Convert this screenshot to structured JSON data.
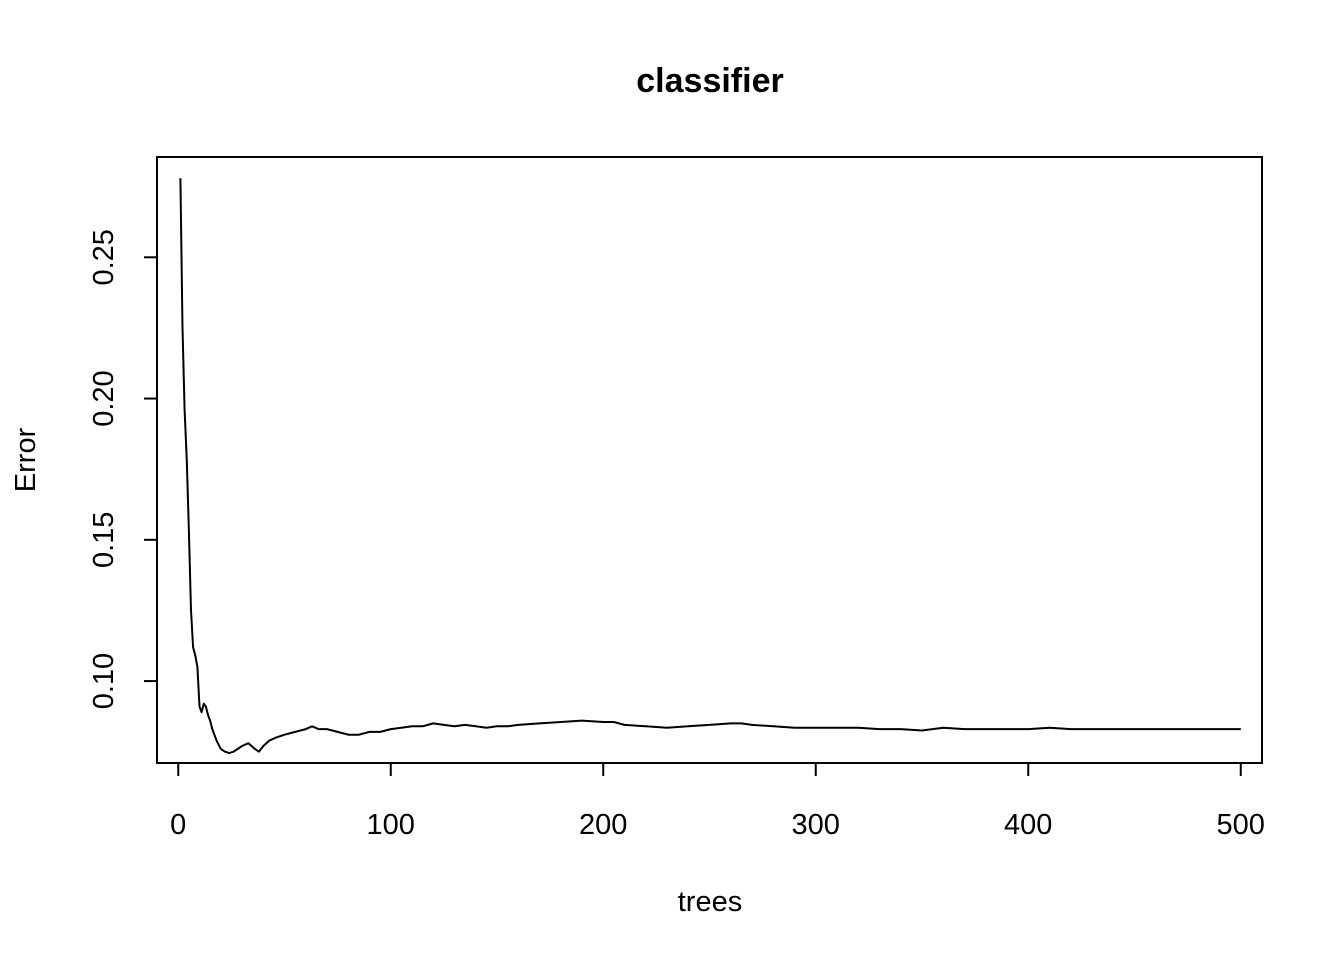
{
  "chart_data": {
    "type": "line",
    "title": "classifier",
    "xlabel": "trees",
    "ylabel": "Error",
    "xlim": [
      -10,
      510
    ],
    "ylim": [
      0.071,
      0.2855
    ],
    "x_ticks": [
      0,
      100,
      200,
      300,
      400,
      500
    ],
    "y_ticks": [
      0.1,
      0.15,
      0.2,
      0.25
    ],
    "x_tick_labels": [
      "0",
      "100",
      "200",
      "300",
      "400",
      "500"
    ],
    "y_tick_labels": [
      "0.10",
      "0.15",
      "0.20",
      "0.25"
    ],
    "grid": false,
    "legend": "none",
    "line_color": "#000000",
    "series": [
      {
        "x": [
          1,
          2,
          3,
          4,
          5,
          6,
          7,
          8,
          9,
          10,
          11,
          12,
          13,
          14,
          15,
          16,
          18,
          20,
          22,
          24,
          26,
          28,
          30,
          33,
          36,
          38,
          40,
          43,
          46,
          50,
          55,
          60,
          63,
          66,
          70,
          75,
          80,
          85,
          90,
          95,
          100,
          105,
          110,
          115,
          120,
          125,
          130,
          135,
          140,
          145,
          150,
          155,
          160,
          170,
          180,
          190,
          200,
          205,
          210,
          220,
          230,
          240,
          250,
          260,
          265,
          270,
          280,
          290,
          300,
          310,
          320,
          330,
          340,
          350,
          360,
          370,
          380,
          390,
          400,
          410,
          420,
          430,
          440,
          450,
          460,
          470,
          480,
          490,
          500
        ],
        "y": [
          0.278,
          0.225,
          0.196,
          0.178,
          0.153,
          0.125,
          0.112,
          0.109,
          0.105,
          0.091,
          0.089,
          0.092,
          0.091,
          0.088,
          0.086,
          0.083,
          0.079,
          0.076,
          0.075,
          0.0745,
          0.075,
          0.076,
          0.077,
          0.078,
          0.076,
          0.075,
          0.077,
          0.079,
          0.08,
          0.081,
          0.082,
          0.083,
          0.084,
          0.083,
          0.083,
          0.082,
          0.081,
          0.081,
          0.082,
          0.082,
          0.083,
          0.0835,
          0.084,
          0.084,
          0.085,
          0.0845,
          0.084,
          0.0845,
          0.084,
          0.0835,
          0.084,
          0.084,
          0.0845,
          0.085,
          0.0855,
          0.086,
          0.0855,
          0.0855,
          0.0845,
          0.084,
          0.0835,
          0.084,
          0.0845,
          0.085,
          0.085,
          0.0845,
          0.084,
          0.0835,
          0.0835,
          0.0835,
          0.0835,
          0.083,
          0.083,
          0.0825,
          0.0835,
          0.083,
          0.083,
          0.083,
          0.083,
          0.0835,
          0.083,
          0.083,
          0.083,
          0.083,
          0.083,
          0.083,
          0.083,
          0.083,
          0.083
        ]
      }
    ]
  }
}
